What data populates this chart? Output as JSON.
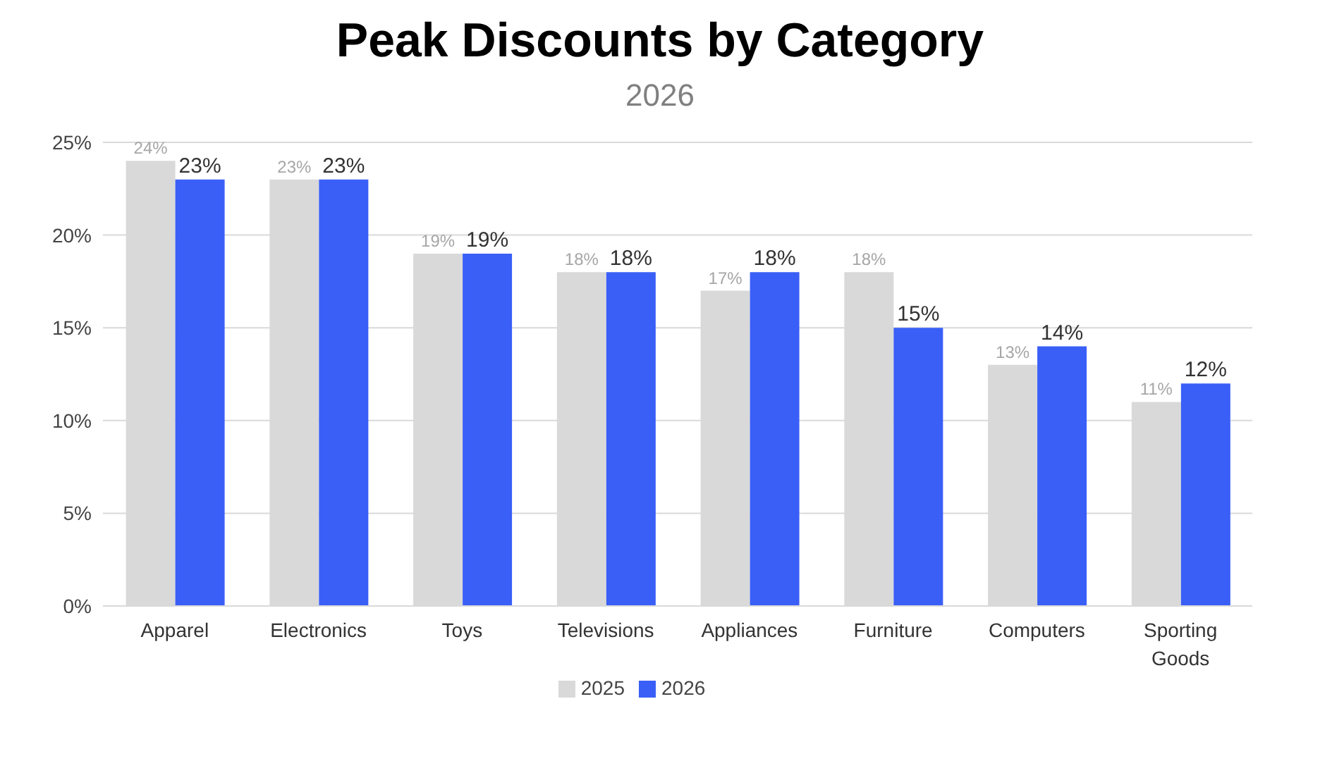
{
  "chart_data": {
    "type": "bar",
    "title": "Peak Discounts by Category",
    "subtitle": "2026",
    "categories": [
      "Apparel",
      "Electronics",
      "Toys",
      "Televisions",
      "Appliances",
      "Furniture",
      "Computers",
      "Sporting Goods"
    ],
    "series": [
      {
        "name": "2025",
        "color": "#d9d9d9",
        "values": [
          24,
          23,
          19,
          18,
          17,
          18,
          13,
          11
        ],
        "value_labels": [
          "24%",
          "23%",
          "19%",
          "18%",
          "17%",
          "18%",
          "13%",
          "11%"
        ]
      },
      {
        "name": "2026",
        "color": "#3a5ff7",
        "values": [
          23,
          23,
          19,
          18,
          18,
          15,
          14,
          12
        ],
        "value_labels": [
          "23%",
          "23%",
          "19%",
          "18%",
          "18%",
          "15%",
          "14%",
          "12%"
        ]
      }
    ],
    "ylim": [
      0,
      25
    ],
    "yticks": [
      {
        "value": 0,
        "label": "0%"
      },
      {
        "value": 5,
        "label": "5%"
      },
      {
        "value": 10,
        "label": "10%"
      },
      {
        "value": 15,
        "label": "15%"
      },
      {
        "value": 20,
        "label": "20%"
      },
      {
        "value": 25,
        "label": "25%"
      }
    ],
    "grid": "y",
    "legend": "bottom"
  }
}
